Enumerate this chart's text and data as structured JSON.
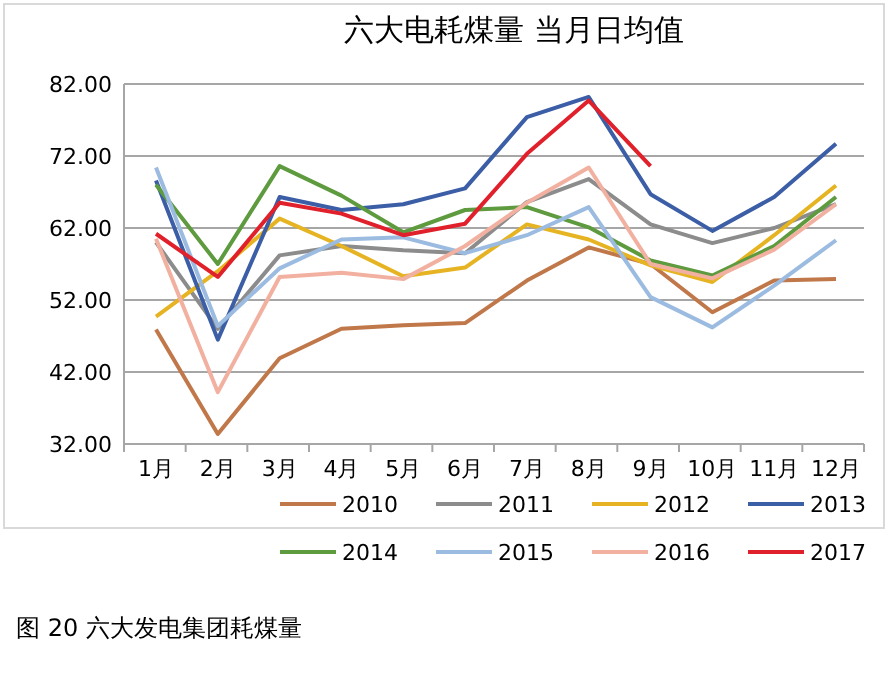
{
  "chart_data": {
    "type": "line",
    "title": "六大电耗煤量 当月日均值",
    "categories": [
      "1月",
      "2月",
      "3月",
      "4月",
      "5月",
      "6月",
      "7月",
      "8月",
      "9月",
      "10月",
      "11月",
      "12月"
    ],
    "ylim": [
      32,
      82
    ],
    "yticks": [
      {
        "value": 32,
        "label": "32.00"
      },
      {
        "value": 42,
        "label": "42.00"
      },
      {
        "value": 52,
        "label": "52.00"
      },
      {
        "value": 62,
        "label": "62.00"
      },
      {
        "value": 72,
        "label": "72.00"
      },
      {
        "value": 82,
        "label": "82.00"
      }
    ],
    "grid": "y",
    "legend": "bottom",
    "marker": "none",
    "line_style": "solid",
    "series": [
      {
        "name": "2010",
        "color": "#c0784a",
        "values": [
          47.9,
          33.4,
          43.9,
          48,
          48.5,
          48.8,
          54.7,
          59.3,
          57,
          50.3,
          54.7,
          54.9
        ]
      },
      {
        "name": "2011",
        "color": "#8c8c8c",
        "values": [
          60,
          48,
          58.2,
          59.5,
          58.9,
          58.5,
          65.6,
          68.8,
          62.5,
          59.9,
          62,
          65.3
        ]
      },
      {
        "name": "2012",
        "color": "#e6b422",
        "values": [
          49.7,
          56,
          63.3,
          59.5,
          55.3,
          56.5,
          62.5,
          60.4,
          56.8,
          54.5,
          61,
          67.9
        ]
      },
      {
        "name": "2013",
        "color": "#3b5ea6",
        "values": [
          68.6,
          46.5,
          66.3,
          64.5,
          65.3,
          67.5,
          77.4,
          80.2,
          66.7,
          61.6,
          66.3,
          73.7
        ]
      },
      {
        "name": "2014",
        "color": "#5e9a3e",
        "values": [
          68,
          57,
          70.6,
          66.5,
          61.4,
          64.5,
          64.9,
          62.1,
          57.5,
          55.4,
          59.5,
          66.3
        ]
      },
      {
        "name": "2015",
        "color": "#9bbbe0",
        "values": [
          70.4,
          48.4,
          56.4,
          60.4,
          60.7,
          58.5,
          61,
          64.9,
          52.4,
          48.2,
          54,
          60.3
        ]
      },
      {
        "name": "2016",
        "color": "#f2b0a0",
        "values": [
          60.5,
          39.2,
          55.2,
          55.8,
          54.9,
          59.5,
          65.5,
          70.4,
          57,
          55,
          59,
          65.3
        ]
      },
      {
        "name": "2017",
        "color": "#e0202a",
        "values": [
          61.2,
          55.2,
          65.5,
          64,
          61,
          62.6,
          72.3,
          79.7,
          70.6,
          null,
          null,
          null
        ]
      }
    ],
    "annotations": [
      "图 20 六大发电集团耗煤量"
    ]
  }
}
